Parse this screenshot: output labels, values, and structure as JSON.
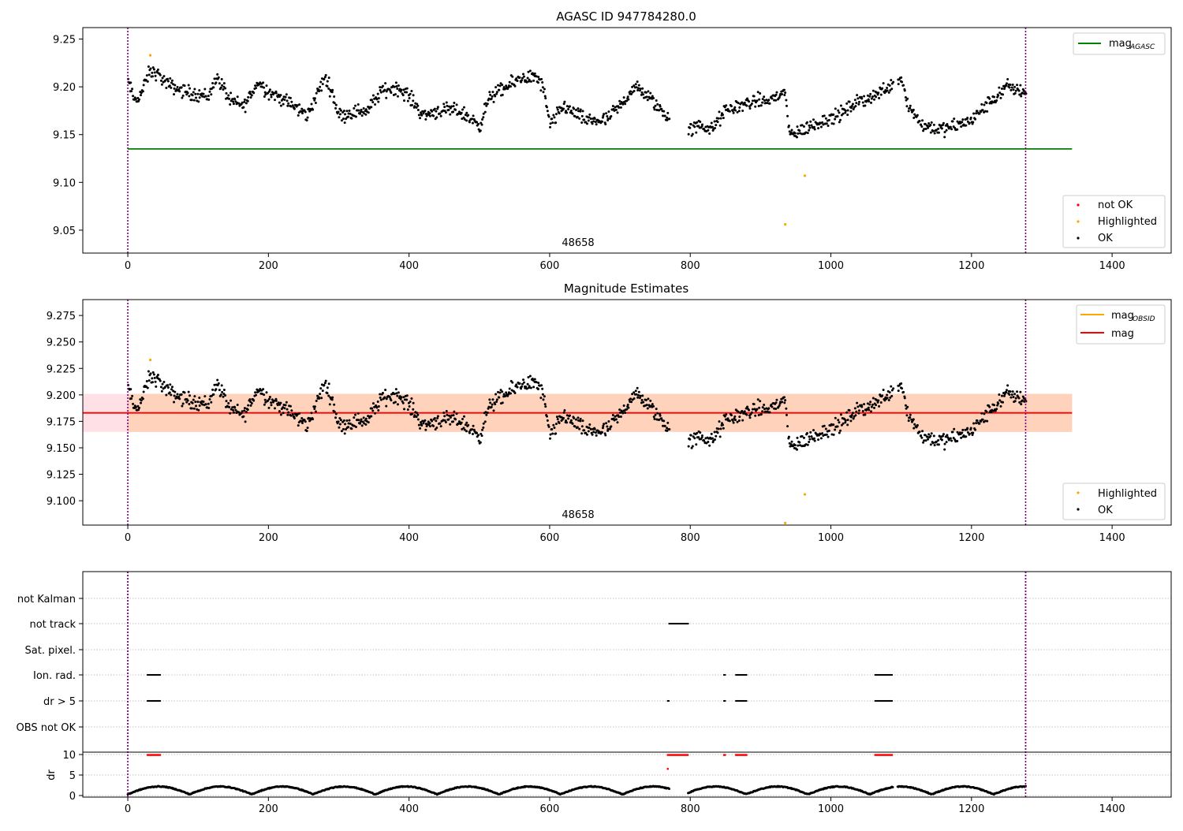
{
  "chart_data": [
    {
      "type": "scatter",
      "title": "AGASC ID 947784280.0",
      "xlim": [
        -64,
        1484
      ],
      "ylim": [
        9.026,
        9.262
      ],
      "xticks": [
        0,
        200,
        400,
        600,
        800,
        1000,
        1200,
        1400
      ],
      "yticks": [
        9.05,
        9.1,
        9.15,
        9.2,
        9.25
      ],
      "vlines": [
        0,
        1277
      ],
      "annotation": "48658",
      "legend_lines": [
        {
          "label": "mag",
          "subscript": "AGASC",
          "color": "#008000"
        }
      ],
      "legend_points": [
        {
          "label": "not OK",
          "color": "#ff0000"
        },
        {
          "label": "Highlighted",
          "color": "#ffa500"
        },
        {
          "label": "OK",
          "color": "#000000"
        }
      ],
      "hline": {
        "y": 9.135,
        "x_end": 1343,
        "color": "#008000"
      },
      "highlighted_points": [
        {
          "x": 32,
          "y": 9.233
        },
        {
          "x": 935,
          "y": 9.056
        },
        {
          "x": 963,
          "y": 9.107
        }
      ],
      "trend": [
        [
          0,
          9.205
        ],
        [
          10,
          9.185
        ],
        [
          20,
          9.195
        ],
        [
          30,
          9.215
        ],
        [
          40,
          9.215
        ],
        [
          55,
          9.203
        ],
        [
          80,
          9.195
        ],
        [
          100,
          9.192
        ],
        [
          115,
          9.19
        ],
        [
          125,
          9.21
        ],
        [
          135,
          9.2
        ],
        [
          145,
          9.185
        ],
        [
          165,
          9.18
        ],
        [
          185,
          9.205
        ],
        [
          200,
          9.195
        ],
        [
          225,
          9.185
        ],
        [
          255,
          9.17
        ],
        [
          280,
          9.21
        ],
        [
          290,
          9.195
        ],
        [
          300,
          9.17
        ],
        [
          330,
          9.175
        ],
        [
          340,
          9.175
        ],
        [
          360,
          9.195
        ],
        [
          380,
          9.2
        ],
        [
          400,
          9.19
        ],
        [
          420,
          9.17
        ],
        [
          440,
          9.175
        ],
        [
          470,
          9.175
        ],
        [
          500,
          9.16
        ],
        [
          515,
          9.19
        ],
        [
          540,
          9.2
        ],
        [
          560,
          9.21
        ],
        [
          580,
          9.21
        ],
        [
          590,
          9.2
        ],
        [
          600,
          9.16
        ],
        [
          620,
          9.18
        ],
        [
          650,
          9.165
        ],
        [
          680,
          9.165
        ],
        [
          700,
          9.18
        ],
        [
          720,
          9.2
        ],
        [
          740,
          9.19
        ],
        [
          765,
          9.17
        ],
        [
          800,
          9.155
        ],
        [
          815,
          9.16
        ],
        [
          830,
          9.155
        ],
        [
          850,
          9.175
        ],
        [
          870,
          9.18
        ],
        [
          890,
          9.185
        ],
        [
          910,
          9.185
        ],
        [
          935,
          9.195
        ],
        [
          940,
          9.15
        ],
        [
          960,
          9.155
        ],
        [
          990,
          9.165
        ],
        [
          1010,
          9.17
        ],
        [
          1040,
          9.185
        ],
        [
          1060,
          9.19
        ],
        [
          1100,
          9.21
        ],
        [
          1110,
          9.18
        ],
        [
          1130,
          9.16
        ],
        [
          1160,
          9.155
        ],
        [
          1180,
          9.16
        ],
        [
          1200,
          9.165
        ],
        [
          1220,
          9.18
        ],
        [
          1250,
          9.2
        ],
        [
          1277,
          9.195
        ]
      ]
    },
    {
      "type": "scatter",
      "title": "Magnitude Estimates",
      "xlim": [
        -64,
        1484
      ],
      "ylim": [
        9.077,
        9.29
      ],
      "xticks": [
        0,
        200,
        400,
        600,
        800,
        1000,
        1200,
        1400
      ],
      "yticks": [
        9.1,
        9.125,
        9.15,
        9.175,
        9.2,
        9.225,
        9.25,
        9.275
      ],
      "vlines": [
        0,
        1277
      ],
      "annotation": "48658",
      "legend_lines": [
        {
          "label": "mag",
          "subscript": "OBSID",
          "color": "#ffa500"
        },
        {
          "label": "mag",
          "subscript": "",
          "color": "#ff0000"
        }
      ],
      "legend_points": [
        {
          "label": "Highlighted",
          "color": "#ffa500"
        },
        {
          "label": "OK",
          "color": "#000000"
        }
      ],
      "hline": {
        "y": 9.183,
        "x_end": 1343,
        "color": "#ff0000"
      },
      "band": {
        "y0": 9.165,
        "y1": 9.201,
        "x_end": 1343
      },
      "highlighted_points": [
        {
          "x": 32,
          "y": 9.233
        },
        {
          "x": 963,
          "y": 9.106
        },
        {
          "x": 935,
          "y": 9.079
        }
      ]
    },
    {
      "type": "scatter",
      "categories": [
        "not Kalman",
        "not track",
        "Sat. pixel.",
        "Ion. rad.",
        "dr > 5",
        "OBS not OK"
      ],
      "xlim": [
        -64,
        1484
      ],
      "xticks": [
        0,
        200,
        400,
        600,
        800,
        1000,
        1200,
        1400
      ],
      "vlines": [
        0,
        1277
      ],
      "flag_segments": {
        "not track": [
          [
            770,
            797
          ]
        ],
        "Ion. rad.": [
          [
            28,
            47
          ],
          [
            848,
            850
          ],
          [
            865,
            880
          ],
          [
            1063,
            1088
          ]
        ],
        "dr > 5": [
          [
            28,
            47
          ],
          [
            768,
            770
          ],
          [
            848,
            850
          ],
          [
            865,
            880
          ],
          [
            1063,
            1088
          ]
        ]
      }
    },
    {
      "type": "scatter",
      "ylabel": "dr",
      "ylim": [
        -1,
        11
      ],
      "yticks": [
        0,
        5,
        10
      ],
      "xlim": [
        -64,
        1484
      ],
      "xticks": [
        0,
        200,
        400,
        600,
        800,
        1000,
        1200,
        1400
      ],
      "xticklabels": [
        "0",
        "200",
        "400",
        "600",
        "800",
        "1000",
        "1200",
        "1400"
      ],
      "vlines": [
        0,
        1277
      ],
      "red_segments": [
        [
          28,
          47
        ],
        [
          768,
          797
        ],
        [
          848,
          850
        ],
        [
          865,
          880
        ],
        [
          1063,
          1088
        ]
      ],
      "red_extra_point": {
        "x": 768,
        "y": 6.5
      }
    }
  ],
  "tick_label_text": {
    "p1_x": [
      "0",
      "200",
      "400",
      "600",
      "800",
      "1000",
      "1200",
      "1400"
    ],
    "p1_y": [
      "9.05",
      "9.10",
      "9.15",
      "9.20",
      "9.25"
    ],
    "p2_x": [
      "0",
      "200",
      "400",
      "600",
      "800",
      "1000",
      "1200",
      "1400"
    ],
    "p2_y": [
      "9.100",
      "9.125",
      "9.150",
      "9.175",
      "9.200",
      "9.225",
      "9.250",
      "9.275"
    ],
    "p4_y": [
      "0",
      "5",
      "10"
    ]
  },
  "colors": {
    "ok": "#000000",
    "highlighted": "#ffa500",
    "not_ok": "#ff0000",
    "agasc_line": "#008000",
    "mag_line": "#ff0000",
    "band_outer": "#ffe0e6",
    "band_inner": "#ffd2bc",
    "vline": "#800080"
  }
}
